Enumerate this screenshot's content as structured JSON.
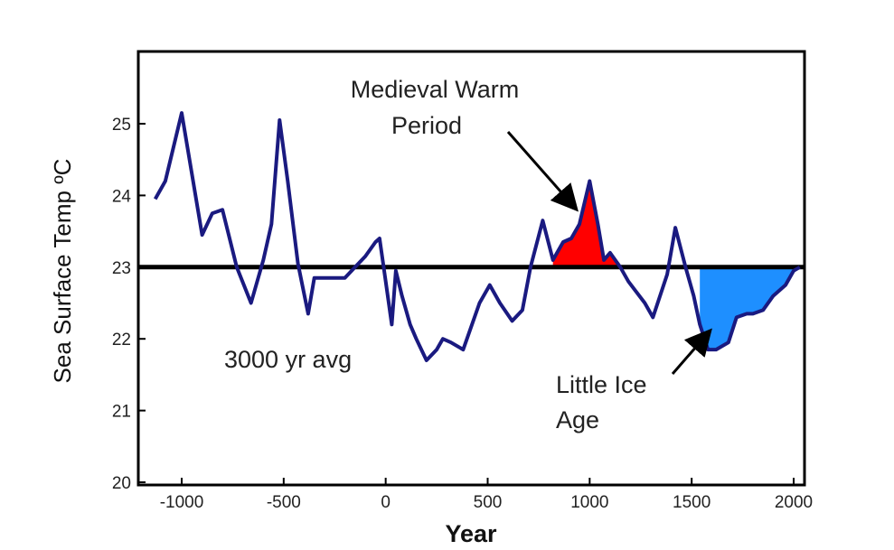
{
  "chart_data": {
    "type": "line",
    "xlabel": "Year",
    "ylabel": "Sea Surface Temp ºC",
    "xlim": [
      -1200,
      2050
    ],
    "ylim": [
      20,
      26
    ],
    "x_ticks": [
      -1000,
      -500,
      0,
      500,
      1000,
      1500,
      2000
    ],
    "x_tick_labels": [
      "-1000",
      "-500",
      "0",
      "500",
      "1000",
      "1500",
      "2000"
    ],
    "y_ticks": [
      20,
      21,
      22,
      23,
      24,
      25
    ],
    "y_tick_labels": [
      "20",
      "21",
      "22",
      "23",
      "24",
      "25"
    ],
    "grid": false,
    "reference_line": {
      "value": 23.0,
      "label": "3000 yr avg"
    },
    "series": [
      {
        "x": [
          -1130,
          -1080,
          -1000,
          -900,
          -850,
          -800,
          -730,
          -660,
          -600,
          -560,
          -520,
          -480,
          -430,
          -380,
          -350,
          -300,
          -250,
          -200,
          -150,
          -100,
          -50,
          -30,
          0,
          30,
          50,
          80,
          120,
          150,
          200,
          250,
          280,
          320,
          380,
          460,
          510,
          560,
          620,
          670,
          710,
          770,
          820,
          870,
          910,
          950,
          1000,
          1040,
          1070,
          1100,
          1150,
          1190,
          1230,
          1270,
          1310,
          1380,
          1420,
          1470,
          1510,
          1540,
          1580,
          1620,
          1680,
          1720,
          1770,
          1800,
          1850,
          1900,
          1960,
          2000,
          2030
        ],
        "y": [
          23.95,
          24.2,
          25.15,
          23.45,
          23.75,
          23.8,
          23.0,
          22.5,
          23.1,
          23.6,
          25.05,
          24.2,
          23.05,
          22.35,
          22.85,
          22.85,
          22.85,
          22.85,
          23.0,
          23.15,
          23.35,
          23.4,
          22.8,
          22.2,
          22.95,
          22.6,
          22.2,
          22.0,
          21.7,
          21.85,
          22.0,
          21.95,
          21.85,
          22.5,
          22.75,
          22.5,
          22.25,
          22.4,
          23.0,
          23.65,
          23.1,
          23.35,
          23.4,
          23.6,
          24.2,
          23.6,
          23.1,
          23.2,
          23.0,
          22.8,
          22.65,
          22.5,
          22.3,
          22.9,
          23.55,
          23.0,
          22.6,
          22.2,
          21.85,
          21.85,
          21.95,
          22.3,
          22.35,
          22.35,
          22.4,
          22.6,
          22.75,
          22.95,
          23.0
        ]
      }
    ],
    "shaded_regions": [
      {
        "x_range": [
          800,
          1200
        ],
        "relation": "above",
        "color": "#ff0000"
      },
      {
        "x_range": [
          1540,
          2040
        ],
        "relation": "below",
        "color": "#1e8fff"
      }
    ],
    "annotations": [
      {
        "text": [
          "Medieval Warm",
          "Period"
        ],
        "arrow_target": [
          840,
          23.6
        ]
      },
      {
        "text": [
          "Little Ice",
          "Age"
        ],
        "arrow_target": [
          1620,
          22.0
        ]
      }
    ],
    "colors": {
      "line": "#1a1a80",
      "reference": "#000000",
      "warm": "#ff0000",
      "cold": "#1e8fff"
    }
  }
}
